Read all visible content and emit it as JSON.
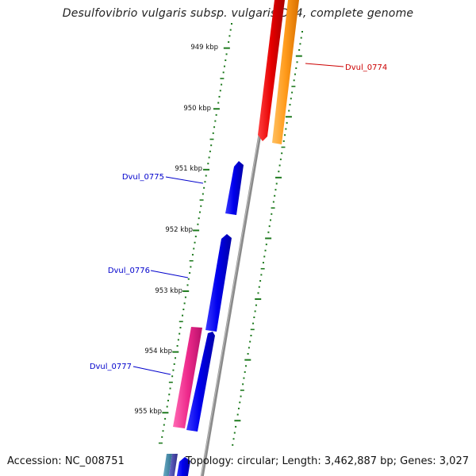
{
  "title": "Desulfovibrio vulgaris subsp. vulgaris DP4, complete genome",
  "accession_label": "Accession: NC_008751",
  "summary_label": "Topology: circular; Length: 3,462,887 bp; Genes: 3,027",
  "colors": {
    "backbone": "#8a8a8a",
    "tick": "#1e7a1e",
    "forward_gene": "#0000e6",
    "pink_gene": "#ee2a8c",
    "red_gene": "#e60000",
    "orange_gene": "#ff9a1a",
    "reverse_label": "#cc0000",
    "forward_label": "#0000cc"
  },
  "ticks": [
    {
      "label": "949 kbp"
    },
    {
      "label": "950 kbp"
    },
    {
      "label": "951 kbp"
    },
    {
      "label": "952 kbp"
    },
    {
      "label": "953 kbp"
    },
    {
      "label": "954 kbp"
    },
    {
      "label": "955 kbp"
    }
  ],
  "gene_labels": [
    {
      "text": "Dvul_0774"
    },
    {
      "text": "Dvul_0775"
    },
    {
      "text": "Dvul_0776"
    },
    {
      "text": "Dvul_0777"
    }
  ]
}
